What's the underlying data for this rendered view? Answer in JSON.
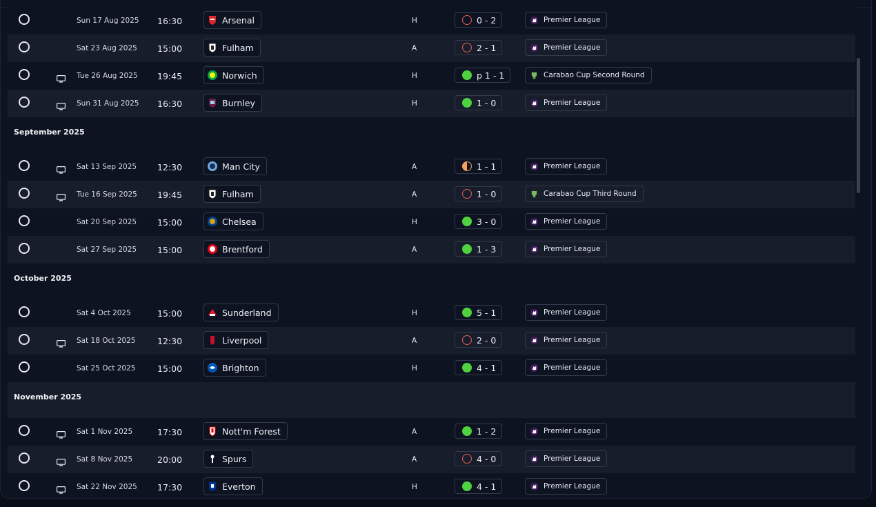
{
  "months": {
    "september": "September 2025",
    "october": "October 2025",
    "november": "November 2025"
  },
  "fixtures": [
    {
      "date": "Sun 17 Aug 2025",
      "time": "16:30",
      "team": "Arsenal",
      "venue": "H",
      "result_type": "loss",
      "score": "0 - 2",
      "competition": "Premier League",
      "competition_icon": "premier-league-icon",
      "tv": false
    },
    {
      "date": "Sat 23 Aug 2025",
      "time": "15:00",
      "team": "Fulham",
      "venue": "A",
      "result_type": "loss",
      "score": "2 - 1",
      "competition": "Premier League",
      "competition_icon": "premier-league-icon",
      "tv": false
    },
    {
      "date": "Tue 26 Aug 2025",
      "time": "19:45",
      "team": "Norwich",
      "venue": "H",
      "result_type": "win",
      "score": "p 1 - 1",
      "competition": "Carabao Cup Second Round",
      "competition_icon": "carabao-cup-icon",
      "tv": true
    },
    {
      "date": "Sun 31 Aug 2025",
      "time": "16:30",
      "team": "Burnley",
      "venue": "H",
      "result_type": "win",
      "score": "1 - 0",
      "competition": "Premier League",
      "competition_icon": "premier-league-icon",
      "tv": true
    },
    {
      "date": "Sat 13 Sep 2025",
      "time": "12:30",
      "team": "Man City",
      "venue": "A",
      "result_type": "draw",
      "score": "1 - 1",
      "competition": "Premier League",
      "competition_icon": "premier-league-icon",
      "tv": true
    },
    {
      "date": "Tue 16 Sep 2025",
      "time": "19:45",
      "team": "Fulham",
      "venue": "A",
      "result_type": "loss",
      "score": "1 - 0",
      "competition": "Carabao Cup Third Round",
      "competition_icon": "carabao-cup-icon",
      "tv": true
    },
    {
      "date": "Sat 20 Sep 2025",
      "time": "15:00",
      "team": "Chelsea",
      "venue": "H",
      "result_type": "win",
      "score": "3 - 0",
      "competition": "Premier League",
      "competition_icon": "premier-league-icon",
      "tv": false
    },
    {
      "date": "Sat 27 Sep 2025",
      "time": "15:00",
      "team": "Brentford",
      "venue": "A",
      "result_type": "win",
      "score": "1 - 3",
      "competition": "Premier League",
      "competition_icon": "premier-league-icon",
      "tv": false
    },
    {
      "date": "Sat 4 Oct 2025",
      "time": "15:00",
      "team": "Sunderland",
      "venue": "H",
      "result_type": "win",
      "score": "5 - 1",
      "competition": "Premier League",
      "competition_icon": "premier-league-icon",
      "tv": false
    },
    {
      "date": "Sat 18 Oct 2025",
      "time": "12:30",
      "team": "Liverpool",
      "venue": "A",
      "result_type": "loss",
      "score": "2 - 0",
      "competition": "Premier League",
      "competition_icon": "premier-league-icon",
      "tv": true
    },
    {
      "date": "Sat 25 Oct 2025",
      "time": "15:00",
      "team": "Brighton",
      "venue": "H",
      "result_type": "win",
      "score": "4 - 1",
      "competition": "Premier League",
      "competition_icon": "premier-league-icon",
      "tv": false
    },
    {
      "date": "Sat 1 Nov 2025",
      "time": "17:30",
      "team": "Nott'm Forest",
      "venue": "A",
      "result_type": "win",
      "score": "1 - 2",
      "competition": "Premier League",
      "competition_icon": "premier-league-icon",
      "tv": true
    },
    {
      "date": "Sat 8 Nov 2025",
      "time": "20:00",
      "team": "Spurs",
      "venue": "A",
      "result_type": "loss",
      "score": "4 - 0",
      "competition": "Premier League",
      "competition_icon": "premier-league-icon",
      "tv": true
    },
    {
      "date": "Sat 22 Nov 2025",
      "time": "17:30",
      "team": "Everton",
      "venue": "H",
      "result_type": "win",
      "score": "4 - 1",
      "competition": "Premier League",
      "competition_icon": "premier-league-icon",
      "tv": true
    }
  ],
  "colors": {
    "win": "#4ed23f",
    "loss": "#e45c5c",
    "draw": "#f2a05a",
    "background": "#0d1320",
    "row_alt": "#171d2a"
  }
}
